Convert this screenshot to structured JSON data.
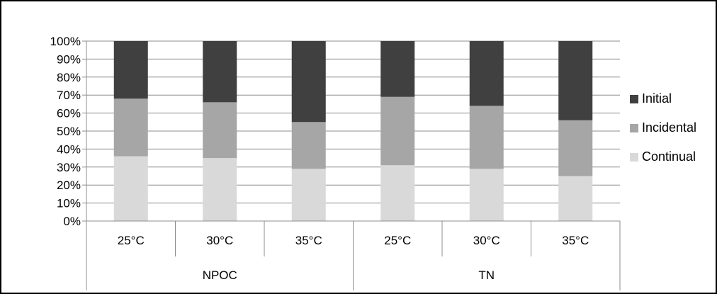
{
  "chart_data": {
    "type": "bar",
    "stacked": true,
    "percent": true,
    "groups": [
      {
        "label": "NPOC",
        "categories": [
          "25°C",
          "30°C",
          "35°C"
        ]
      },
      {
        "label": "TN",
        "categories": [
          "25°C",
          "30°C",
          "35°C"
        ]
      }
    ],
    "categories": [
      "25°C",
      "30°C",
      "35°C",
      "25°C",
      "30°C",
      "35°C"
    ],
    "series": [
      {
        "name": "Continual",
        "color": "#d9d9d9",
        "values": [
          36,
          35,
          29,
          31,
          29,
          25
        ]
      },
      {
        "name": "Incidental",
        "color": "#a6a6a6",
        "values": [
          32,
          31,
          26,
          38,
          35,
          31
        ]
      },
      {
        "name": "Initial",
        "color": "#404040",
        "values": [
          32,
          34,
          45,
          31,
          36,
          44
        ]
      }
    ],
    "y_ticks": [
      "0%",
      "10%",
      "20%",
      "30%",
      "40%",
      "50%",
      "60%",
      "70%",
      "80%",
      "90%",
      "100%"
    ],
    "ylim": [
      0,
      100
    ],
    "grid": true,
    "legend": {
      "placement": "right",
      "order": [
        "Initial",
        "Incidental",
        "Continual"
      ]
    }
  }
}
